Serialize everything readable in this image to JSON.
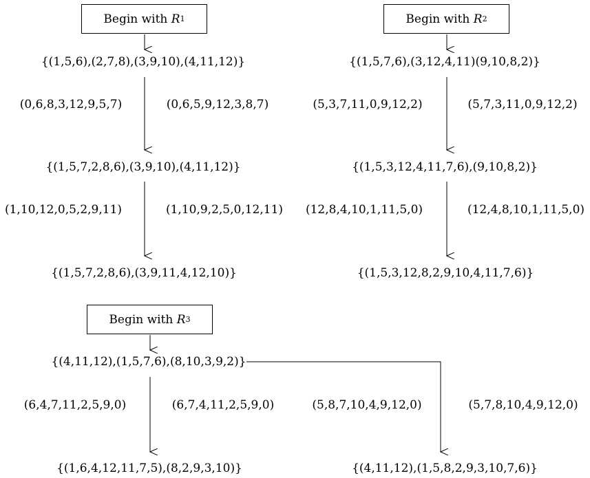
{
  "panels": [
    {
      "box": {
        "prefix": "Begin with ",
        "var": "R",
        "sub": "1"
      },
      "states": [
        "{(1,5,6),(2,7,8),(3,9,10),(4,11,12)}",
        "{(1,5,7,2,8,6),(3,9,10),(4,11,12)}",
        "{(1,5,7,2,8,6),(3,9,11,4,12,10)}"
      ],
      "steps": [
        {
          "left": "(0,6,8,3,12,9,5,7)",
          "right": "(0,6,5,9,12,3,8,7)"
        },
        {
          "left": "(1,10,12,0,5,2,9,11)",
          "right": "(1,10,9,2,5,0,12,11)"
        }
      ]
    },
    {
      "box": {
        "prefix": "Begin with ",
        "var": "R",
        "sub": "2"
      },
      "states": [
        "{(1,5,7,6),(3,12,4,11)(9,10,8,2)}",
        "{(1,5,3,12,4,11,7,6),(9,10,8,2)}",
        "{(1,5,3,12,8,2,9,10,4,11,7,6)}"
      ],
      "steps": [
        {
          "left": "(5,3,7,11,0,9,12,2)",
          "right": "(5,7,3,11,0,9,12,2)"
        },
        {
          "left": "(12,8,4,10,1,11,5,0)",
          "right": "(12,4,8,10,1,11,5,0)"
        }
      ]
    },
    {
      "box": {
        "prefix": "Begin with ",
        "var": "R",
        "sub": "3"
      },
      "start": "{(4,11,12),(1,5,7,6),(8,10,3,9,2)}",
      "branches": [
        {
          "left": "(6,4,7,11,2,5,9,0)",
          "right": "(6,7,4,11,2,5,9,0)",
          "result": "{(1,6,4,12,11,7,5),(8,2,9,3,10)}"
        },
        {
          "left": "(5,8,7,10,4,9,12,0)",
          "right": "(5,7,8,10,4,9,12,0)",
          "result": "{(4,11,12),(1,5,8,2,9,3,10,7,6)}"
        }
      ]
    }
  ]
}
